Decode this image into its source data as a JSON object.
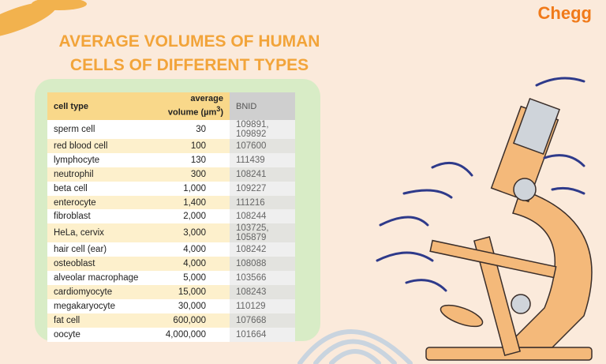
{
  "brand": "Chegg",
  "title": [
    "AVERAGE VOLUMES OF HUMAN",
    "CELLS OF DIFFERENT TYPES"
  ],
  "table": {
    "header": [
      "cell type",
      {
        "line1": "average",
        "line2": "volume (µm",
        "sup": "3",
        "end": ")"
      },
      "BNID"
    ],
    "rows": [
      [
        "sperm cell",
        "30",
        "109891, 109892"
      ],
      [
        "red blood cell",
        "100",
        "107600"
      ],
      [
        "lymphocyte",
        "130",
        "111439"
      ],
      [
        "neutrophil",
        "300",
        "108241"
      ],
      [
        "beta cell",
        "1,000",
        "109227"
      ],
      [
        "enterocyte",
        "1,400",
        "111216"
      ],
      [
        "fibroblast",
        "2,000",
        "108244"
      ],
      [
        "HeLa, cervix",
        "3,000",
        "103725, 105879"
      ],
      [
        "hair cell (ear)",
        "4,000",
        "108242"
      ],
      [
        "osteoblast",
        "4,000",
        "108088"
      ],
      [
        "alveolar macrophage",
        "5,000",
        "103566"
      ],
      [
        "cardiomyocyte",
        "15,000",
        "108243"
      ],
      [
        "megakaryocyte",
        "30,000",
        "110129"
      ],
      [
        "fat cell",
        "600,000",
        "107668"
      ],
      [
        "oocyte",
        "4,000,000",
        "101664"
      ]
    ]
  }
}
